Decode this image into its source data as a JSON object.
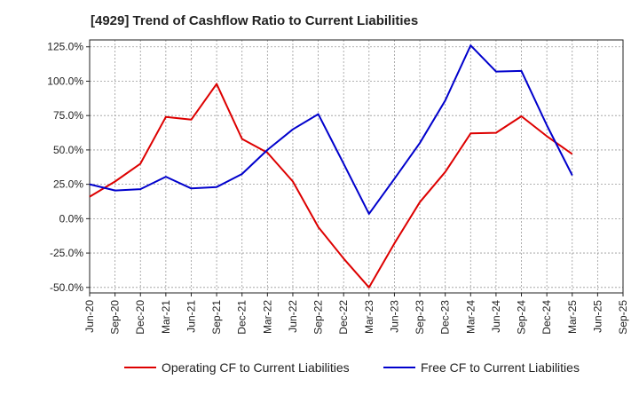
{
  "chart_data": {
    "type": "line",
    "title": "[4929]  Trend of Cashflow Ratio to Current Liabilities",
    "xlabel": "",
    "ylabel": "",
    "x_tick_labels": [
      "Jun-20",
      "Sep-20",
      "Dec-20",
      "Mar-21",
      "Jun-21",
      "Sep-21",
      "Dec-21",
      "Mar-22",
      "Jun-22",
      "Sep-22",
      "Dec-22",
      "Mar-23",
      "Jun-23",
      "Sep-23",
      "Dec-23",
      "Mar-24",
      "Jun-24",
      "Sep-24",
      "Dec-24",
      "Mar-25",
      "Jun-25",
      "Sep-25"
    ],
    "y_tick_labels": [
      "125.0%",
      "100.0%",
      "75.0%",
      "50.0%",
      "25.0%",
      "0.0%",
      "-25.0%",
      "-50.0%"
    ],
    "y_ticks": [
      125,
      100,
      75,
      50,
      25,
      0,
      -25,
      -50
    ],
    "ylim": [
      -54,
      130
    ],
    "grid": true,
    "legend_position": "bottom",
    "series": [
      {
        "name": "Operating CF to Current Liabilities",
        "color": "#dd0000",
        "values": [
          16,
          27,
          40,
          74,
          72,
          98,
          58,
          48,
          27,
          -6,
          -29,
          -50,
          -18,
          12,
          34,
          62,
          62.5,
          74.5,
          60,
          47,
          null,
          null
        ]
      },
      {
        "name": "Free CF to Current Liabilities",
        "color": "#0000cc",
        "values": [
          25,
          20.5,
          21.5,
          30.5,
          22,
          23,
          32.5,
          50,
          65,
          76,
          40,
          3.5,
          29,
          55,
          86,
          126,
          107,
          107.5,
          68,
          31.5,
          null,
          null
        ]
      }
    ]
  }
}
